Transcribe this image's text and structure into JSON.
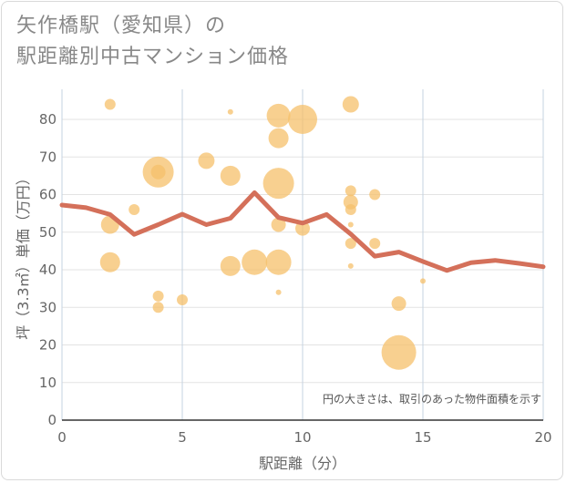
{
  "title": {
    "line1": "矢作橋駅（愛知県）の",
    "line2": "駅距離別中古マンション価格"
  },
  "chart_data": {
    "type": "scatter",
    "xlabel": "駅距離（分）",
    "ylabel": "坪（3.3㎡）単価（万円）",
    "xlim": [
      0,
      20
    ],
    "ylim": [
      0,
      88
    ],
    "x_ticks": [
      0,
      5,
      10,
      15,
      20
    ],
    "y_ticks": [
      0,
      10,
      20,
      30,
      40,
      50,
      60,
      70,
      80
    ],
    "grid": true,
    "note": "円の大きさは、取引のあった物件面積を示す",
    "bubble_color": "#f5c06b",
    "line_color": "#d4705a",
    "points": [
      {
        "x": 2,
        "y": 84,
        "s": 6
      },
      {
        "x": 2,
        "y": 52,
        "s": 10
      },
      {
        "x": 2,
        "y": 42,
        "s": 11
      },
      {
        "x": 3,
        "y": 56,
        "s": 6
      },
      {
        "x": 4,
        "y": 66,
        "s": 17
      },
      {
        "x": 4,
        "y": 66,
        "s": 8
      },
      {
        "x": 4,
        "y": 33,
        "s": 6
      },
      {
        "x": 4,
        "y": 30,
        "s": 6
      },
      {
        "x": 5,
        "y": 32,
        "s": 6
      },
      {
        "x": 6,
        "y": 69,
        "s": 9
      },
      {
        "x": 7,
        "y": 82,
        "s": 3
      },
      {
        "x": 7,
        "y": 65,
        "s": 11
      },
      {
        "x": 7,
        "y": 41,
        "s": 11
      },
      {
        "x": 8,
        "y": 42,
        "s": 14
      },
      {
        "x": 9,
        "y": 81,
        "s": 13
      },
      {
        "x": 9,
        "y": 75,
        "s": 11
      },
      {
        "x": 9,
        "y": 63,
        "s": 17
      },
      {
        "x": 9,
        "y": 52,
        "s": 8
      },
      {
        "x": 9,
        "y": 42,
        "s": 14
      },
      {
        "x": 9,
        "y": 34,
        "s": 3
      },
      {
        "x": 10,
        "y": 80,
        "s": 16
      },
      {
        "x": 10,
        "y": 51,
        "s": 8
      },
      {
        "x": 12,
        "y": 84,
        "s": 9
      },
      {
        "x": 12,
        "y": 61,
        "s": 6
      },
      {
        "x": 12,
        "y": 58,
        "s": 8
      },
      {
        "x": 12,
        "y": 56,
        "s": 6
      },
      {
        "x": 12,
        "y": 52,
        "s": 3
      },
      {
        "x": 12,
        "y": 47,
        "s": 6
      },
      {
        "x": 12,
        "y": 41,
        "s": 3
      },
      {
        "x": 13,
        "y": 60,
        "s": 6
      },
      {
        "x": 13,
        "y": 47,
        "s": 6
      },
      {
        "x": 14,
        "y": 31,
        "s": 8
      },
      {
        "x": 14,
        "y": 18,
        "s": 19
      },
      {
        "x": 15,
        "y": 37,
        "s": 3
      }
    ],
    "trend": [
      {
        "x": 0,
        "y": 57.2
      },
      {
        "x": 1,
        "y": 56.5
      },
      {
        "x": 2,
        "y": 54.7
      },
      {
        "x": 3,
        "y": 49.4
      },
      {
        "x": 4,
        "y": 52.0
      },
      {
        "x": 5,
        "y": 54.8
      },
      {
        "x": 6,
        "y": 52.0
      },
      {
        "x": 7,
        "y": 53.7
      },
      {
        "x": 8,
        "y": 60.5
      },
      {
        "x": 9,
        "y": 53.9
      },
      {
        "x": 10,
        "y": 52.4
      },
      {
        "x": 11,
        "y": 54.7
      },
      {
        "x": 12,
        "y": 49.5
      },
      {
        "x": 13,
        "y": 43.6
      },
      {
        "x": 14,
        "y": 44.7
      },
      {
        "x": 15,
        "y": 42.2
      },
      {
        "x": 16,
        "y": 39.8
      },
      {
        "x": 17,
        "y": 41.9
      },
      {
        "x": 18,
        "y": 42.5
      },
      {
        "x": 19,
        "y": 41.7
      },
      {
        "x": 20,
        "y": 40.8
      }
    ]
  }
}
